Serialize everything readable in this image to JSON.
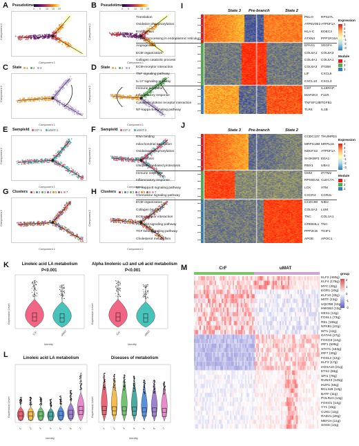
{
  "panels": {
    "A": {
      "letter": "A",
      "title": "Pseudotime",
      "ticks": [
        "0",
        "5",
        "10",
        "15",
        "20"
      ],
      "xlabel": "Component 1",
      "ylabel": "Component 2"
    },
    "B": {
      "letter": "B",
      "title": "Pseudotime",
      "ticks": [
        "0",
        "5",
        "10",
        "15",
        "20"
      ],
      "xlabel": "Component 1",
      "ylabel": "Component 2"
    },
    "C": {
      "letter": "C",
      "title": "State",
      "legend": [
        "1",
        "2",
        "3"
      ],
      "xlabel": "Component 1",
      "ylabel": "Component 2"
    },
    "D": {
      "letter": "D",
      "title": "State",
      "legend": [
        "1",
        "2",
        "3"
      ],
      "xlabel": "Component 1",
      "ylabel": "Component 2"
    },
    "E": {
      "letter": "E",
      "title": "SampleId",
      "legend": [
        "CrF-1",
        "uMAT-1"
      ],
      "xlabel": "Component 1",
      "ylabel": "Component 2"
    },
    "F": {
      "letter": "F",
      "title": "SampleId",
      "legend": [
        "CrF-2",
        "uMAT-2"
      ],
      "xlabel": "Component 1",
      "ylabel": "Component 2"
    },
    "G": {
      "letter": "G",
      "title": "Clusters",
      "legend": [
        "1",
        "2",
        "3",
        "4",
        "5",
        "6",
        "7"
      ],
      "xlabel": "Component 1",
      "ylabel": "Component 2"
    },
    "H": {
      "letter": "H",
      "title": "Clusters",
      "legend": [
        "1",
        "2",
        "3",
        "4",
        "5",
        "6",
        "7"
      ],
      "xlabel": "Component 1",
      "ylabel": "Component 2"
    },
    "I": {
      "letter": "I",
      "states": [
        "State 3",
        "Pre-branch",
        "State 2"
      ],
      "terms": [
        "Translation",
        "Oxidative phosphorylation",
        "Endocytosis",
        "Protein processing in endoplasmic reticulum",
        "Angiogenesis",
        "ECM organization",
        "Collagen catabolic process",
        "ECM-receptor interaction",
        "TNF signaling pathway",
        "IL-17 signaling pathway",
        "Immune response",
        "Inflammatory response",
        "Cytokine-cytokine receptor interaction",
        "NF-kappa B signaling pathway"
      ],
      "genes": [
        [
          "PELO",
          "RPS27L"
        ],
        [
          "ATP6V0E2",
          "ATP5F1A"
        ],
        [
          "HLA-C",
          "EDEC2"
        ],
        [
          "ATXN3",
          "PPP1R15A"
        ],
        [
          "EPAS1",
          "VEGFA"
        ],
        [
          "COL6A1",
          "COL9A3"
        ],
        [
          "COL4A1",
          "COL6A1"
        ],
        [
          "COL6A3",
          "ITGB8"
        ],
        [
          "LIF",
          "CXCL5"
        ],
        [
          "CXCL10",
          "CXCL3"
        ],
        [
          "CD7",
          "IL18RAP"
        ],
        [
          "MAP2K3",
          "F11R"
        ],
        [
          "TNFSF13B",
          "TGFB1"
        ],
        [
          "TLR4",
          "IL1B"
        ]
      ],
      "expression_label": "Expression",
      "expression_ticks": [
        "3",
        "2",
        "1",
        "0",
        "-1",
        "-2",
        "-3"
      ],
      "module_label": "Module",
      "modules": [
        "1",
        "2",
        "3"
      ]
    },
    "J": {
      "letter": "J",
      "states": [
        "State 3",
        "Pre-branch",
        "State 2"
      ],
      "terms": [
        "RNA binding",
        "mitochondrial translation",
        "Oxidative phosphorylation",
        "Endocytosis",
        "Ubiquitin mediated proteolysis",
        "Immune response",
        "Inflammatory response",
        "NF-kappa B signaling pathway",
        "Chemokine signaling pathway",
        "ECM organization",
        "Collagen binding",
        "ECM-receptor interaction",
        "PI3K-Akt signaling pathway",
        "TGF-beta signaling pathway",
        "Cholesterol metabolism"
      ],
      "genes": [
        [
          "CCDC137",
          "THUMPD1"
        ],
        [
          "MRPS18B",
          "MRPL16"
        ],
        [
          "NDUFS2",
          "ATP5F1A"
        ],
        [
          "SH3KBP1",
          "EEA1"
        ],
        [
          "RBX1",
          "UBA1"
        ],
        [
          "OSM",
          "IFITM2"
        ],
        [
          "RPS6KA5",
          "CLEC7A"
        ],
        [
          "LCK",
          "ATM"
        ],
        [
          "CXCR4",
          "CCR2v"
        ],
        [
          "CCDC80",
          "NID2"
        ],
        [
          "COL5A3",
          "LUM"
        ],
        [
          "TNC",
          "COL1A1"
        ],
        [
          "CREB3L1",
          "TNC"
        ],
        [
          "PPP2CB",
          "TGIF1"
        ],
        [
          "APOE",
          "APOC1"
        ]
      ],
      "expression_label": "Expression",
      "expression_ticks": [
        "3",
        "2",
        "1",
        "0",
        "-1",
        "-2",
        "-3"
      ],
      "module_label": "Module",
      "modules": [
        "1",
        "2",
        "3"
      ]
    },
    "K": {
      "letter": "K",
      "plots": [
        {
          "title": "Linoleic acid LA metabolism",
          "pval": "P<0.001",
          "xlabel": "Identity",
          "ylabel": "Expression Level",
          "groups": [
            "CrF",
            "uMAT"
          ]
        },
        {
          "title": "Alpha linolenic ω3 and ω6 acid metabolism",
          "pval": "P<0.001",
          "xlabel": "Identity",
          "ylabel": "Expression Level",
          "groups": [
            "CrF",
            "uMAT"
          ]
        }
      ]
    },
    "L": {
      "letter": "L",
      "plots": [
        {
          "title": "Linoleic acid LA metabolism",
          "xlabel": "Identity",
          "ylabel": "Expression Level",
          "groups": [
            "1",
            "2",
            "3",
            "4",
            "5",
            "6",
            "7"
          ]
        },
        {
          "title": "Diseases of metabolism",
          "xlabel": "Identity",
          "ylabel": "Expression Level",
          "groups": [
            "1",
            "2",
            "3",
            "4",
            "5",
            "6",
            "7"
          ]
        }
      ]
    },
    "M": {
      "letter": "M",
      "groups": [
        "CrF",
        "uMAT"
      ],
      "group_label": "group",
      "scale_ticks": [
        "2",
        "1",
        "0",
        "-1",
        "-2"
      ],
      "tfs": [
        "KLF2 (460g)",
        "KLF4 (175g)",
        "MYC (20g)",
        "EGR1 (20g)",
        "KLF10 (33g)",
        "MITF (13g)",
        "UQCRB (10g)",
        "HMGB3 (13g)",
        "HES1 (14g)",
        "FOSL1 (73g)",
        "REL (195g)",
        "NFKB1 (22g)",
        "WT1 (12g)",
        "GATA6 (27g)",
        "FOXO3 (14g)",
        "IRF1 (539g)",
        "STAT1 (163g)",
        "IRF7 (30g)",
        "FOSL2 (12g)",
        "KLF3 (17g)",
        "HOXA10 (21g)",
        "ETS2 (66g)",
        "SPI1 (78g)",
        "RUNX3 (145g)",
        "IKZF1 (65g)",
        "BCL11B (13g)",
        "BATF (11g)",
        "POLR2A (14g)",
        "FOXO1 (14g)",
        "YY1 (15g)",
        "CUX1 (12g)",
        "RAD21 (28g)",
        "MEF2A (11g)",
        "SOX6 (13g)"
      ]
    }
  },
  "colors": {
    "state1": "#f2a43a",
    "state2": "#4aa84a",
    "state3": "#b9a3d6",
    "crf": "#f04a6e",
    "umat": "#28b8b0",
    "group_crf": "#7cc36a",
    "group_umat": "#c9a6d6"
  }
}
